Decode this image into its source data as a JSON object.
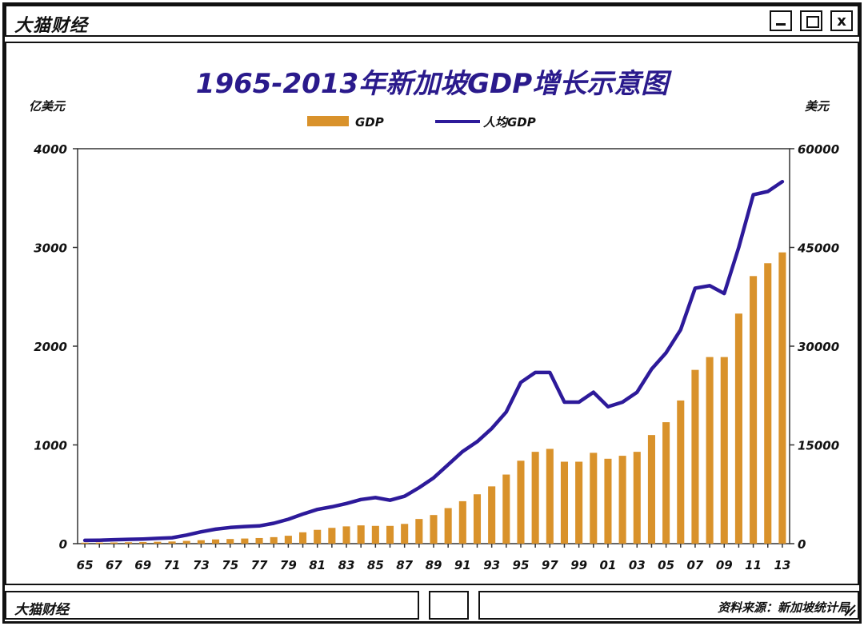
{
  "window": {
    "title": "大猫财经",
    "minimize_icon": "minimize-icon",
    "maximize_icon": "maximize-icon",
    "close_label": "x"
  },
  "footer": {
    "left_text": "大猫财经",
    "right_text": "资料来源：新加坡统计局"
  },
  "colors": {
    "bar": "#d9922b",
    "line": "#2d1a9a",
    "title": "#2a1a8c",
    "border": "#111111"
  },
  "chart_data": {
    "type": "bar+line",
    "title": "1965-2013年新加坡GDP增长示意图",
    "left_axis_unit": "亿美元",
    "right_axis_unit": "美元",
    "left_ylim": [
      0,
      4000
    ],
    "right_ylim": [
      0,
      60000
    ],
    "left_ticks": [
      "0",
      "1000",
      "2000",
      "3000",
      "4000"
    ],
    "right_ticks": [
      "0",
      "15000",
      "30000",
      "45000",
      "60000"
    ],
    "years": [
      "65",
      "66",
      "67",
      "68",
      "69",
      "70",
      "71",
      "72",
      "73",
      "74",
      "75",
      "76",
      "77",
      "78",
      "79",
      "80",
      "81",
      "82",
      "83",
      "84",
      "85",
      "86",
      "87",
      "88",
      "89",
      "90",
      "91",
      "92",
      "93",
      "94",
      "95",
      "96",
      "97",
      "98",
      "99",
      "00",
      "01",
      "02",
      "03",
      "04",
      "05",
      "06",
      "07",
      "08",
      "09",
      "10",
      "11",
      "12",
      "13"
    ],
    "x_tick_labels": [
      "65",
      "67",
      "69",
      "71",
      "73",
      "75",
      "77",
      "79",
      "81",
      "83",
      "85",
      "87",
      "89",
      "91",
      "93",
      "95",
      "97",
      "99",
      "01",
      "03",
      "05",
      "07",
      "09",
      "11",
      "13"
    ],
    "legend": [
      "GDP",
      "人均GDP"
    ],
    "series": [
      {
        "name": "GDP",
        "axis": "left",
        "kind": "bar",
        "values": [
          10,
          11,
          12,
          14,
          16,
          19,
          22,
          28,
          35,
          43,
          47,
          52,
          57,
          66,
          80,
          115,
          140,
          160,
          175,
          185,
          180,
          180,
          200,
          250,
          290,
          360,
          430,
          500,
          580,
          700,
          840,
          930,
          960,
          830,
          830,
          920,
          860,
          890,
          930,
          1100,
          1230,
          1450,
          1760,
          1890,
          1890,
          2330,
          2710,
          2840,
          2950
        ]
      },
      {
        "name": "人均GDP",
        "axis": "right",
        "kind": "line",
        "values": [
          500,
          520,
          600,
          650,
          700,
          800,
          900,
          1300,
          1800,
          2200,
          2450,
          2600,
          2700,
          3100,
          3700,
          4500,
          5200,
          5600,
          6100,
          6700,
          7000,
          6600,
          7200,
          8500,
          10000,
          12000,
          14000,
          15500,
          17500,
          20000,
          24500,
          26000,
          26000,
          21500,
          21500,
          23000,
          20800,
          21500,
          23000,
          26500,
          29000,
          32500,
          38800,
          39200,
          38000,
          45000,
          53000,
          53500,
          55000
        ]
      }
    ]
  }
}
